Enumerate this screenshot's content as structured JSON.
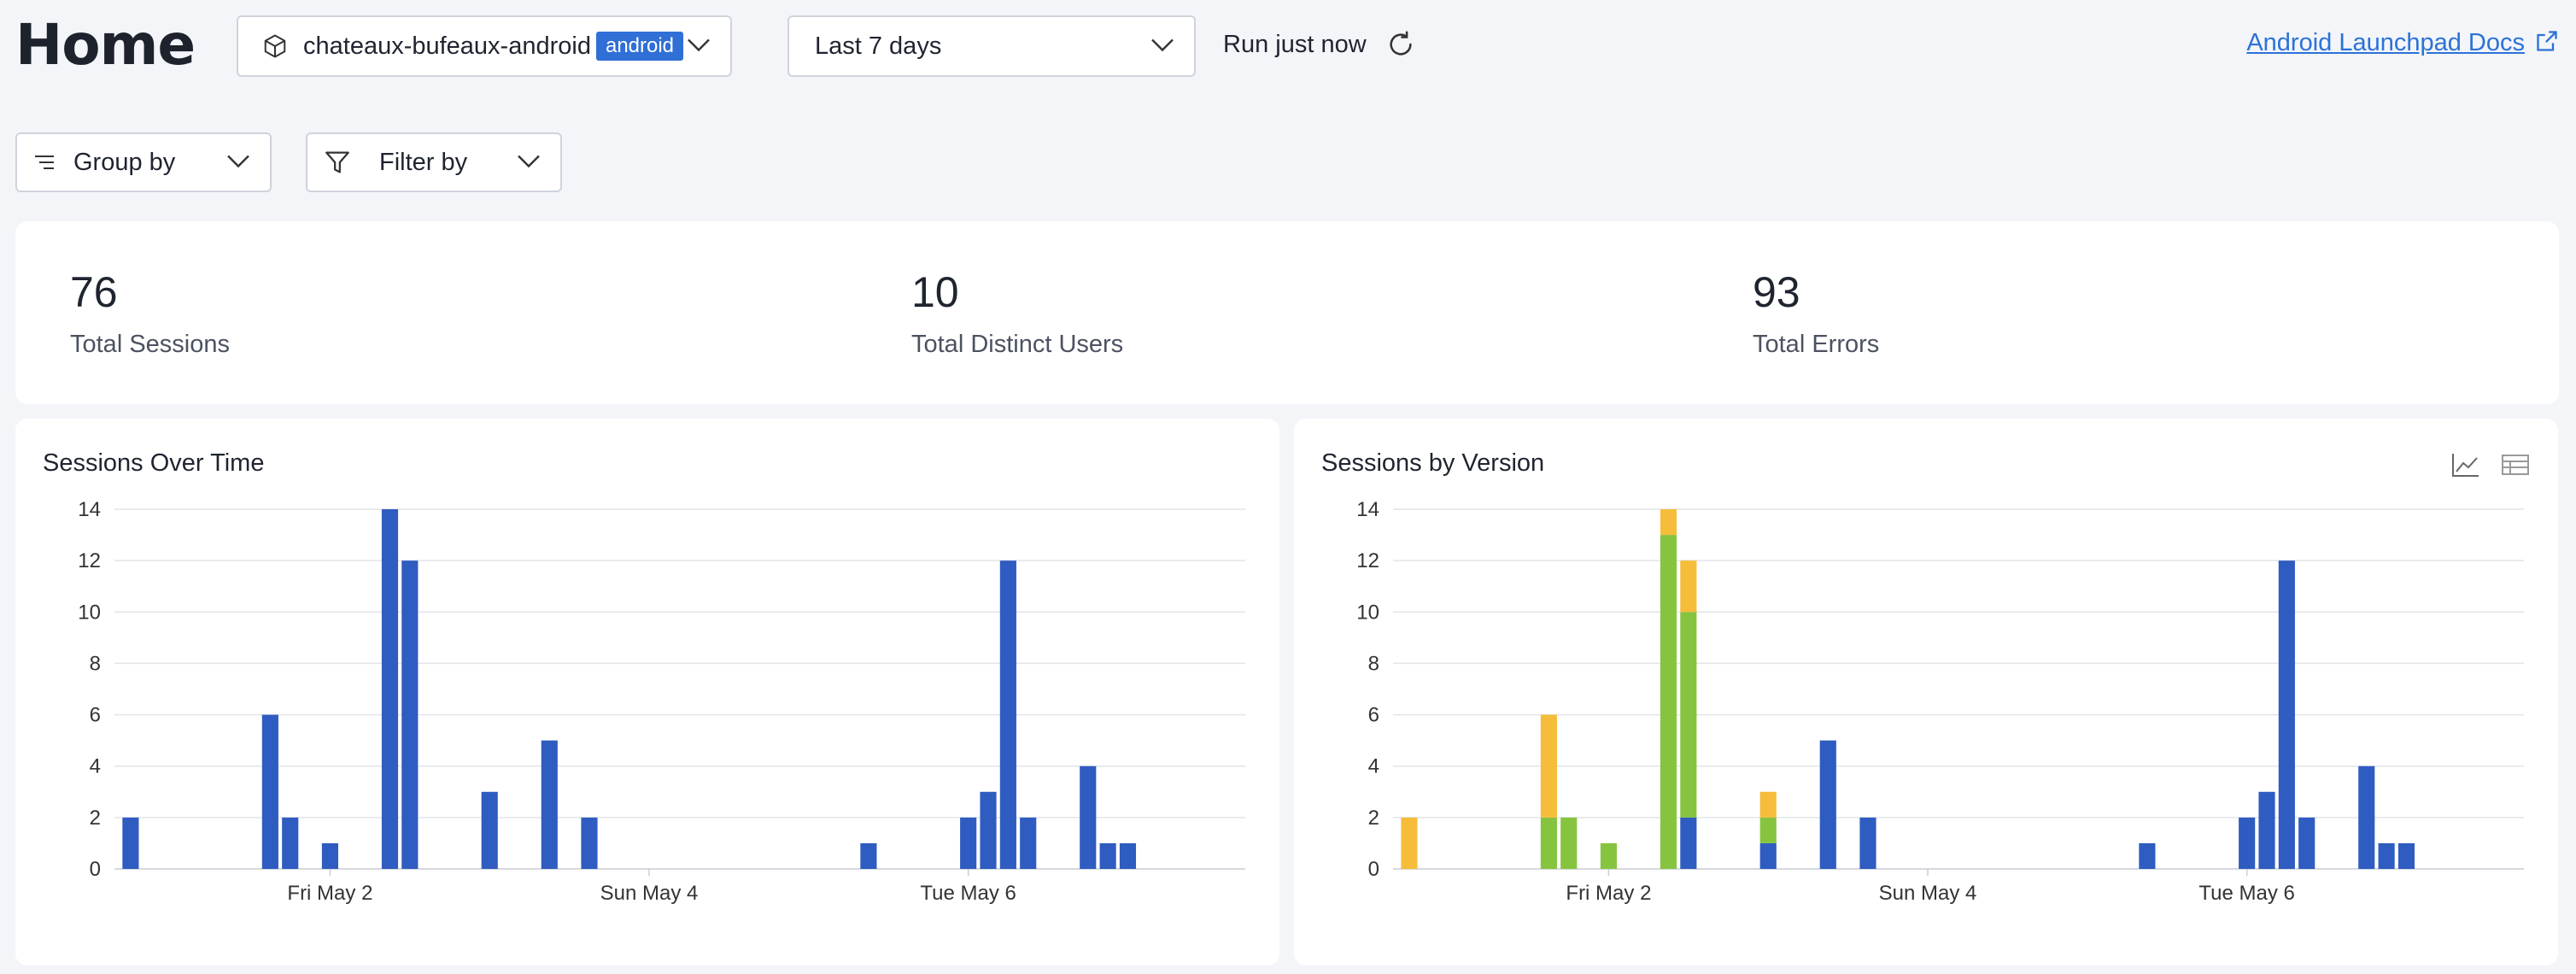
{
  "header": {
    "title": "Home",
    "project": "chateaux-bufeaux-android",
    "platform_badge": "android",
    "time_range": "Last 7 days",
    "run_status": "Run just now",
    "docs_link": "Android Launchpad Docs"
  },
  "filters": {
    "group_by": "Group by",
    "filter_by": "Filter by"
  },
  "stats": [
    {
      "value": "76",
      "label": "Total Sessions"
    },
    {
      "value": "10",
      "label": "Total Distinct Users"
    },
    {
      "value": "93",
      "label": "Total Errors"
    }
  ],
  "colors": {
    "blue": "#2f5cc0",
    "green": "#86c440",
    "yellow": "#f5bd3a",
    "link": "#2a72d8"
  },
  "chart_data": [
    {
      "type": "bar",
      "title": "Sessions Over Time",
      "ylim": [
        0,
        14
      ],
      "yticks": [
        "0",
        "2",
        "4",
        "6",
        "8",
        "10",
        "12",
        "14"
      ],
      "xtick_labels": [
        "Fri May 2",
        "Sun May 4",
        "Tue May 6"
      ],
      "xtick_bins": [
        10,
        26,
        42
      ],
      "bin_count": 56,
      "grid": true,
      "series": [
        {
          "values": [
            2,
            0,
            0,
            0,
            0,
            0,
            0,
            6,
            2,
            0,
            1,
            0,
            0,
            14,
            12,
            0,
            0,
            0,
            3,
            0,
            0,
            5,
            0,
            2,
            0,
            0,
            0,
            0,
            0,
            0,
            0,
            0,
            0,
            0,
            0,
            0,
            0,
            1,
            0,
            0,
            0,
            0,
            2,
            3,
            12,
            2,
            0,
            0,
            4,
            1,
            1,
            0,
            0,
            0,
            0,
            0
          ]
        }
      ]
    },
    {
      "type": "bar",
      "title": "Sessions by Version",
      "stacked": true,
      "ylim": [
        0,
        14
      ],
      "yticks": [
        "0",
        "2",
        "4",
        "6",
        "8",
        "10",
        "12",
        "14"
      ],
      "xtick_labels": [
        "Fri May 2",
        "Sun May 4",
        "Tue May 6"
      ],
      "xtick_bins": [
        10,
        26,
        42
      ],
      "bin_count": 56,
      "grid": true,
      "series": [
        {
          "color": "blue",
          "values": [
            0,
            0,
            0,
            0,
            0,
            0,
            0,
            0,
            0,
            0,
            0,
            0,
            0,
            0,
            2,
            0,
            0,
            0,
            1,
            0,
            0,
            5,
            0,
            2,
            0,
            0,
            0,
            0,
            0,
            0,
            0,
            0,
            0,
            0,
            0,
            0,
            0,
            1,
            0,
            0,
            0,
            0,
            2,
            3,
            12,
            2,
            0,
            0,
            4,
            1,
            1,
            0,
            0,
            0,
            0,
            0
          ]
        },
        {
          "color": "green",
          "values": [
            0,
            0,
            0,
            0,
            0,
            0,
            0,
            2,
            2,
            0,
            1,
            0,
            0,
            13,
            8,
            0,
            0,
            0,
            1,
            0,
            0,
            0,
            0,
            0,
            0,
            0,
            0,
            0,
            0,
            0,
            0,
            0,
            0,
            0,
            0,
            0,
            0,
            0,
            0,
            0,
            0,
            0,
            0,
            0,
            0,
            0,
            0,
            0,
            0,
            0,
            0,
            0,
            0,
            0,
            0,
            0
          ]
        },
        {
          "color": "yellow",
          "values": [
            2,
            0,
            0,
            0,
            0,
            0,
            0,
            4,
            0,
            0,
            0,
            0,
            0,
            1,
            2,
            0,
            0,
            0,
            1,
            0,
            0,
            0,
            0,
            0,
            0,
            0,
            0,
            0,
            0,
            0,
            0,
            0,
            0,
            0,
            0,
            0,
            0,
            0,
            0,
            0,
            0,
            0,
            0,
            0,
            0,
            0,
            0,
            0,
            0,
            0,
            0,
            0,
            0,
            0,
            0,
            0
          ]
        }
      ]
    }
  ]
}
